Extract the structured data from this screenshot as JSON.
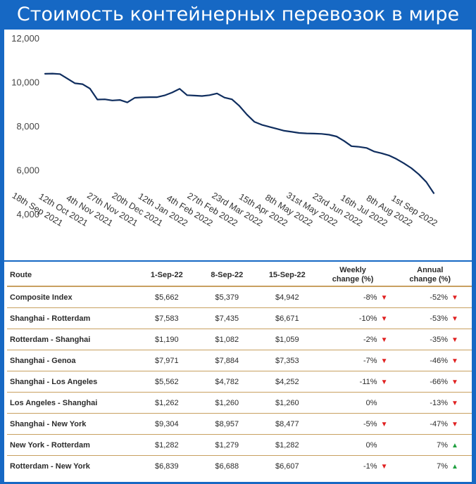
{
  "title": "Стоимость контейнерных перевозок в мире",
  "colors": {
    "background": "#1668c4",
    "line": "#0f2d5e",
    "down_arrow": "#e02020",
    "up_arrow": "#20a040",
    "rule": "#c8a060"
  },
  "chart_data": {
    "type": "line",
    "title": "Стоимость контейнерных перевозок в мире",
    "xlabel": "",
    "ylabel": "",
    "ylim": [
      4000,
      12000
    ],
    "y_ticks": [
      "4,000",
      "6,000",
      "8,000",
      "10,000",
      "12,000"
    ],
    "y_tick_values": [
      4000,
      6000,
      8000,
      10000,
      12000
    ],
    "x_tick_labels": [
      "18th Sep 2021",
      "12th Oct 2021",
      "4th Nov 2021",
      "27th Nov 2021",
      "20th Dec 2021",
      "12th Jan 2022",
      "4th Feb 2022",
      "27th Feb 2022",
      "23rd Mar 2022",
      "15th Apr 2022",
      "8th May 2022",
      "31st May 2022",
      "23rd Jun 2022",
      "16th Jul 2022",
      "8th Aug 2022",
      "1st Sep 2022"
    ],
    "grid": false,
    "legend": "none",
    "series": [
      {
        "values": [
          10370,
          10380,
          10360,
          10150,
          9940,
          9900,
          9700,
          9200,
          9210,
          9160,
          9180,
          9070,
          9280,
          9300,
          9310,
          9310,
          9390,
          9520,
          9690,
          9400,
          9380,
          9360,
          9400,
          9480,
          9290,
          9210,
          8910,
          8520,
          8190,
          8050,
          7960,
          7870,
          7780,
          7730,
          7680,
          7660,
          7650,
          7640,
          7600,
          7520,
          7320,
          7080,
          7050,
          7000,
          6840,
          6760,
          6660,
          6500,
          6300,
          6080,
          5800,
          5450,
          4942
        ]
      }
    ]
  },
  "table": {
    "headers": {
      "route": "Route",
      "d1": "1-Sep-22",
      "d2": "8-Sep-22",
      "d3": "15-Sep-22",
      "weekly_l1": "Weekly",
      "weekly_l2": "change (%)",
      "annual_l1": "Annual",
      "annual_l2": "change (%)"
    },
    "rows": [
      {
        "route": "Composite Index",
        "d1": "$5,662",
        "d2": "$5,379",
        "d3": "$4,942",
        "weekly": "-8%",
        "weekly_dir": "down",
        "annual": "-52%",
        "annual_dir": "down"
      },
      {
        "route": "Shanghai - Rotterdam",
        "d1": "$7,583",
        "d2": "$7,435",
        "d3": "$6,671",
        "weekly": "-10%",
        "weekly_dir": "down",
        "annual": "-53%",
        "annual_dir": "down"
      },
      {
        "route": "Rotterdam - Shanghai",
        "d1": "$1,190",
        "d2": "$1,082",
        "d3": "$1,059",
        "weekly": "-2%",
        "weekly_dir": "down",
        "annual": "-35%",
        "annual_dir": "down"
      },
      {
        "route": "Shanghai - Genoa",
        "d1": "$7,971",
        "d2": "$7,884",
        "d3": "$7,353",
        "weekly": "-7%",
        "weekly_dir": "down",
        "annual": "-46%",
        "annual_dir": "down"
      },
      {
        "route": "Shanghai - Los Angeles",
        "d1": "$5,562",
        "d2": "$4,782",
        "d3": "$4,252",
        "weekly": "-11%",
        "weekly_dir": "down",
        "annual": "-66%",
        "annual_dir": "down"
      },
      {
        "route": "Los Angeles - Shanghai",
        "d1": "$1,262",
        "d2": "$1,260",
        "d3": "$1,260",
        "weekly": "0%",
        "weekly_dir": "none",
        "annual": "-13%",
        "annual_dir": "down"
      },
      {
        "route": "Shanghai - New York",
        "d1": "$9,304",
        "d2": "$8,957",
        "d3": "$8,477",
        "weekly": "-5%",
        "weekly_dir": "down",
        "annual": "-47%",
        "annual_dir": "down"
      },
      {
        "route": "New York - Rotterdam",
        "d1": "$1,282",
        "d2": "$1,279",
        "d3": "$1,282",
        "weekly": "0%",
        "weekly_dir": "none",
        "annual": "7%",
        "annual_dir": "up"
      },
      {
        "route": "Rotterdam - New York",
        "d1": "$6,839",
        "d2": "$6,688",
        "d3": "$6,607",
        "weekly": "-1%",
        "weekly_dir": "down",
        "annual": "7%",
        "annual_dir": "up"
      }
    ]
  }
}
